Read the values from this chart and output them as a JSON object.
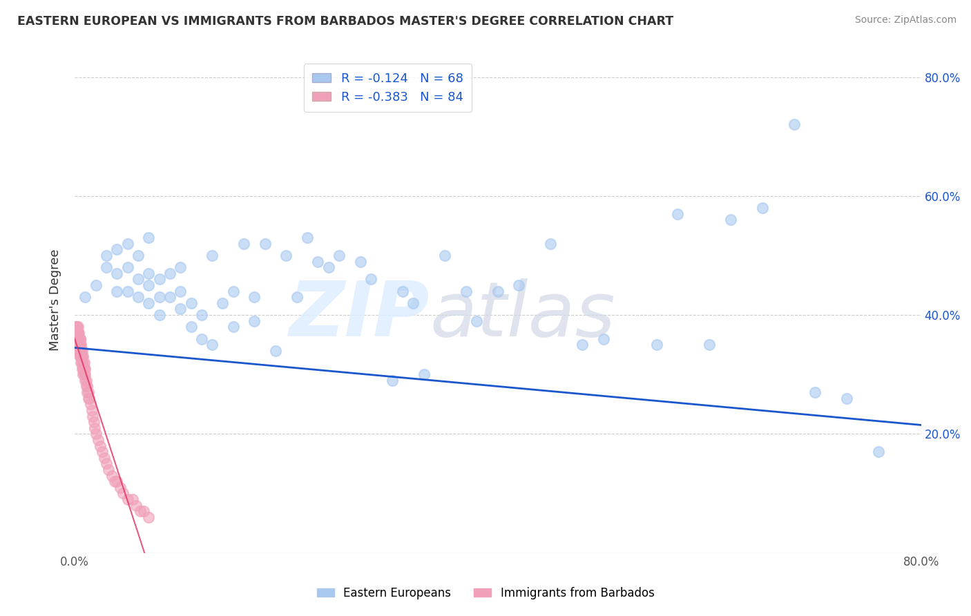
{
  "title": "EASTERN EUROPEAN VS IMMIGRANTS FROM BARBADOS MASTER'S DEGREE CORRELATION CHART",
  "source": "Source: ZipAtlas.com",
  "ylabel": "Master's Degree",
  "xlim": [
    0.0,
    0.8
  ],
  "ylim": [
    0.0,
    0.85
  ],
  "blue_R": -0.124,
  "blue_N": 68,
  "pink_R": -0.383,
  "pink_N": 84,
  "blue_color": "#a8c8f0",
  "pink_color": "#f0a0b8",
  "trend_line_color": "#1a56cc",
  "pink_line_color": "#e03060",
  "legend_label_blue": "Eastern Europeans",
  "legend_label_pink": "Immigrants from Barbados",
  "blue_scatter_x": [
    0.01,
    0.02,
    0.03,
    0.03,
    0.04,
    0.04,
    0.04,
    0.05,
    0.05,
    0.05,
    0.06,
    0.06,
    0.06,
    0.07,
    0.07,
    0.07,
    0.07,
    0.08,
    0.08,
    0.08,
    0.09,
    0.09,
    0.1,
    0.1,
    0.1,
    0.11,
    0.11,
    0.12,
    0.12,
    0.13,
    0.13,
    0.14,
    0.15,
    0.15,
    0.16,
    0.17,
    0.17,
    0.18,
    0.19,
    0.2,
    0.21,
    0.22,
    0.23,
    0.24,
    0.25,
    0.27,
    0.28,
    0.3,
    0.31,
    0.32,
    0.33,
    0.35,
    0.37,
    0.38,
    0.4,
    0.42,
    0.45,
    0.48,
    0.5,
    0.55,
    0.57,
    0.6,
    0.62,
    0.65,
    0.68,
    0.7,
    0.73,
    0.76
  ],
  "blue_scatter_y": [
    0.43,
    0.45,
    0.48,
    0.5,
    0.44,
    0.47,
    0.51,
    0.44,
    0.48,
    0.52,
    0.43,
    0.46,
    0.5,
    0.42,
    0.45,
    0.47,
    0.53,
    0.4,
    0.43,
    0.46,
    0.43,
    0.47,
    0.41,
    0.44,
    0.48,
    0.38,
    0.42,
    0.36,
    0.4,
    0.35,
    0.5,
    0.42,
    0.38,
    0.44,
    0.52,
    0.39,
    0.43,
    0.52,
    0.34,
    0.5,
    0.43,
    0.53,
    0.49,
    0.48,
    0.5,
    0.49,
    0.46,
    0.29,
    0.44,
    0.42,
    0.3,
    0.5,
    0.44,
    0.39,
    0.44,
    0.45,
    0.52,
    0.35,
    0.36,
    0.35,
    0.57,
    0.35,
    0.56,
    0.58,
    0.72,
    0.27,
    0.26,
    0.17
  ],
  "pink_scatter_x": [
    0.002,
    0.002,
    0.002,
    0.002,
    0.002,
    0.002,
    0.002,
    0.002,
    0.003,
    0.003,
    0.003,
    0.003,
    0.003,
    0.003,
    0.003,
    0.003,
    0.004,
    0.004,
    0.004,
    0.004,
    0.004,
    0.004,
    0.004,
    0.004,
    0.005,
    0.005,
    0.005,
    0.005,
    0.005,
    0.005,
    0.005,
    0.005,
    0.005,
    0.005,
    0.005,
    0.005,
    0.006,
    0.006,
    0.006,
    0.006,
    0.007,
    0.007,
    0.007,
    0.007,
    0.008,
    0.008,
    0.008,
    0.008,
    0.009,
    0.009,
    0.009,
    0.01,
    0.01,
    0.01,
    0.011,
    0.011,
    0.012,
    0.012,
    0.013,
    0.013,
    0.014,
    0.015,
    0.016,
    0.017,
    0.018,
    0.019,
    0.02,
    0.022,
    0.024,
    0.026,
    0.028,
    0.03,
    0.032,
    0.035,
    0.038,
    0.04,
    0.043,
    0.046,
    0.05,
    0.055,
    0.058,
    0.062,
    0.065,
    0.07
  ],
  "pink_scatter_y": [
    0.38,
    0.36,
    0.35,
    0.37,
    0.38,
    0.36,
    0.34,
    0.38,
    0.37,
    0.36,
    0.35,
    0.37,
    0.38,
    0.35,
    0.36,
    0.34,
    0.36,
    0.35,
    0.34,
    0.36,
    0.35,
    0.37,
    0.34,
    0.35,
    0.36,
    0.35,
    0.34,
    0.36,
    0.35,
    0.33,
    0.35,
    0.34,
    0.33,
    0.35,
    0.34,
    0.36,
    0.34,
    0.33,
    0.35,
    0.32,
    0.33,
    0.32,
    0.34,
    0.31,
    0.32,
    0.31,
    0.33,
    0.3,
    0.31,
    0.3,
    0.32,
    0.3,
    0.29,
    0.31,
    0.29,
    0.28,
    0.28,
    0.27,
    0.27,
    0.26,
    0.26,
    0.25,
    0.24,
    0.23,
    0.22,
    0.21,
    0.2,
    0.19,
    0.18,
    0.17,
    0.16,
    0.15,
    0.14,
    0.13,
    0.12,
    0.12,
    0.11,
    0.1,
    0.09,
    0.09,
    0.08,
    0.07,
    0.07,
    0.06
  ]
}
